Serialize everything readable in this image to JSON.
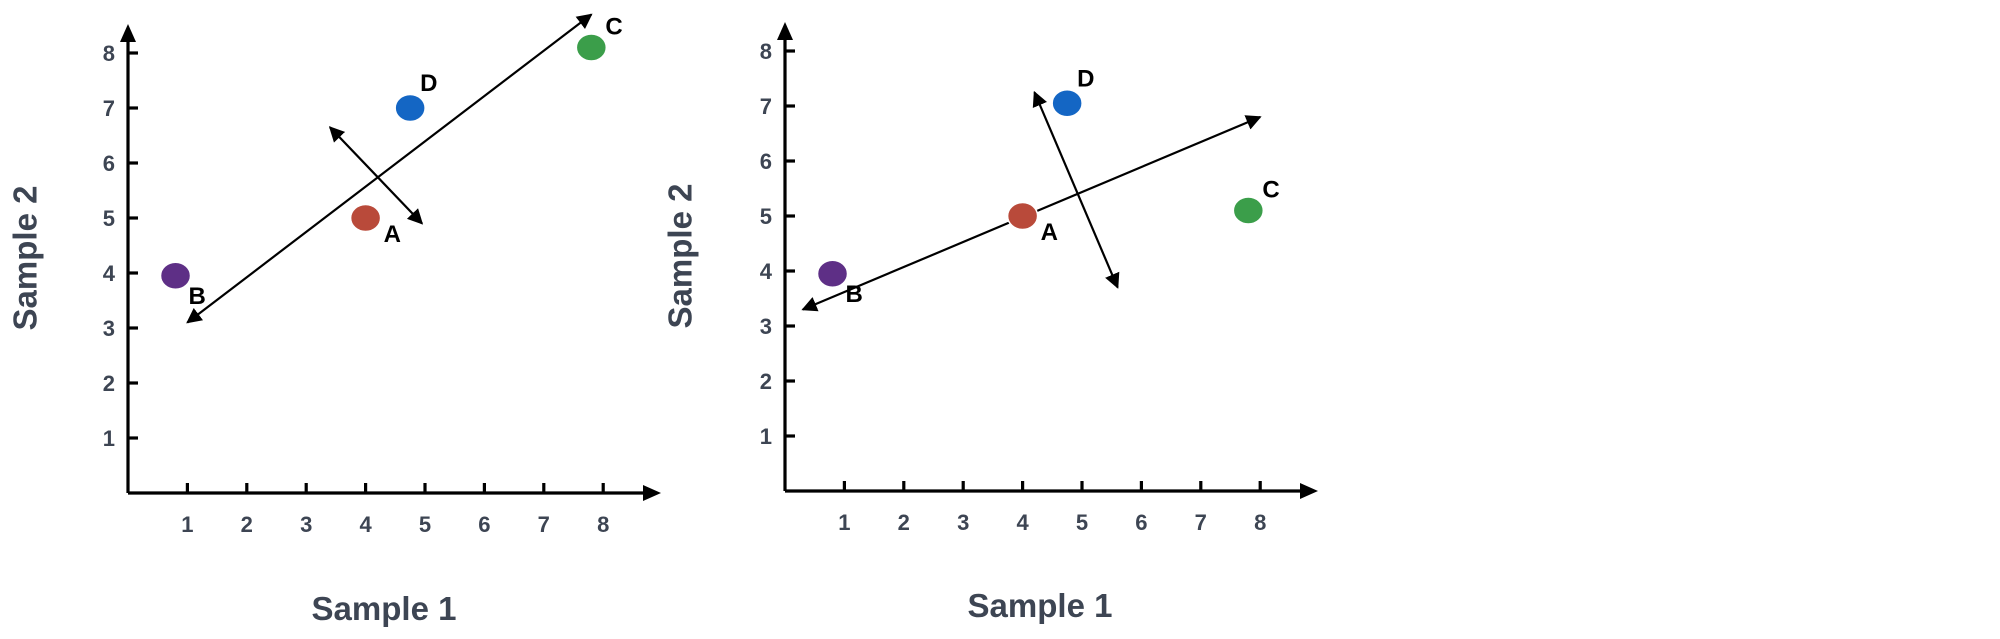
{
  "chart_data": [
    {
      "type": "scatter",
      "title": "",
      "xlabel": "Sample 1",
      "ylabel": "Sample 2",
      "xticks": [
        1,
        2,
        3,
        4,
        5,
        6,
        7,
        8
      ],
      "yticks": [
        1,
        2,
        3,
        4,
        5,
        6,
        7,
        8
      ],
      "xlim": [
        0,
        8.75
      ],
      "ylim": [
        0.2,
        8.7
      ],
      "grid": false,
      "points": [
        {
          "label": "A",
          "x": 4.0,
          "y": 5.0,
          "color": "#b94a3a"
        },
        {
          "label": "B",
          "x": 0.8,
          "y": 3.95,
          "color": "#5e2f86"
        },
        {
          "label": "C",
          "x": 7.8,
          "y": 8.1,
          "color": "#3b9e4a"
        },
        {
          "label": "D",
          "x": 4.75,
          "y": 7.0,
          "color": "#1466c4"
        }
      ],
      "arrows": [
        {
          "name": "pc1",
          "from": [
            1.0,
            3.1
          ],
          "to": [
            7.8,
            8.7
          ]
        },
        {
          "name": "pc2",
          "from": [
            3.4,
            6.65
          ],
          "to": [
            4.95,
            4.9
          ]
        }
      ]
    },
    {
      "type": "scatter",
      "title": "",
      "xlabel": "Sample 1",
      "ylabel": "Sample 2",
      "xticks": [
        1,
        2,
        3,
        4,
        5,
        6,
        7,
        8
      ],
      "yticks": [
        1,
        2,
        3,
        4,
        5,
        6,
        7,
        8
      ],
      "xlim": [
        0,
        8.75
      ],
      "ylim": [
        0.2,
        8.7
      ],
      "grid": false,
      "points": [
        {
          "label": "A",
          "x": 4.0,
          "y": 5.0,
          "color": "#b94a3a"
        },
        {
          "label": "B",
          "x": 0.8,
          "y": 3.95,
          "color": "#5e2f86"
        },
        {
          "label": "C",
          "x": 7.8,
          "y": 5.1,
          "color": "#3b9e4a"
        },
        {
          "label": "D",
          "x": 4.75,
          "y": 7.05,
          "color": "#1466c4"
        }
      ],
      "arrows": [
        {
          "name": "pc1",
          "from": [
            0.3,
            3.3
          ],
          "to": [
            8.0,
            6.8
          ]
        },
        {
          "name": "pc2",
          "from": [
            4.2,
            7.25
          ],
          "to": [
            5.6,
            3.7
          ]
        }
      ]
    }
  ]
}
